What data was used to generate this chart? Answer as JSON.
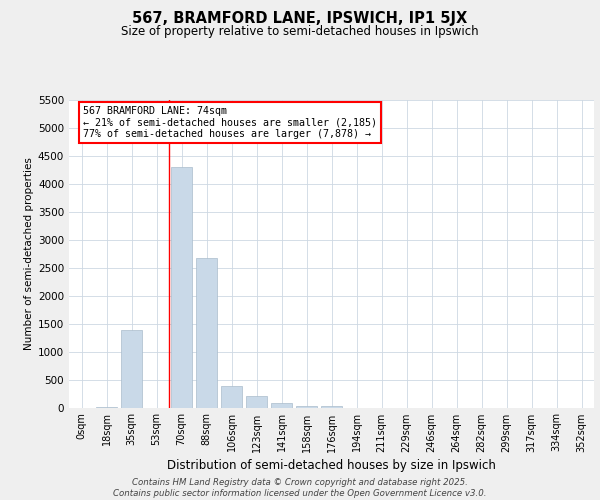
{
  "title": "567, BRAMFORD LANE, IPSWICH, IP1 5JX",
  "subtitle": "Size of property relative to semi-detached houses in Ipswich",
  "xlabel": "Distribution of semi-detached houses by size in Ipswich",
  "ylabel": "Number of semi-detached properties",
  "bin_labels": [
    "0sqm",
    "18sqm",
    "35sqm",
    "53sqm",
    "70sqm",
    "88sqm",
    "106sqm",
    "123sqm",
    "141sqm",
    "158sqm",
    "176sqm",
    "194sqm",
    "211sqm",
    "229sqm",
    "246sqm",
    "264sqm",
    "282sqm",
    "299sqm",
    "317sqm",
    "334sqm",
    "352sqm"
  ],
  "bar_values": [
    0,
    10,
    1380,
    0,
    4300,
    2680,
    380,
    200,
    80,
    30,
    20,
    0,
    0,
    0,
    0,
    0,
    0,
    0,
    0,
    0,
    0
  ],
  "bar_color": "#c9d9e8",
  "bar_edge_color": "#aabccc",
  "property_line_bin": 4,
  "annotation_text": "567 BRAMFORD LANE: 74sqm\n← 21% of semi-detached houses are smaller (2,185)\n77% of semi-detached houses are larger (7,878) →",
  "annotation_box_facecolor": "white",
  "annotation_border_color": "red",
  "property_line_color": "red",
  "ylim": [
    0,
    5500
  ],
  "yticks": [
    0,
    500,
    1000,
    1500,
    2000,
    2500,
    3000,
    3500,
    4000,
    4500,
    5000,
    5500
  ],
  "footer_text": "Contains HM Land Registry data © Crown copyright and database right 2025.\nContains public sector information licensed under the Open Government Licence v3.0.",
  "bg_color": "#efefef",
  "plot_bg_color": "white",
  "grid_color": "#cdd8e3"
}
